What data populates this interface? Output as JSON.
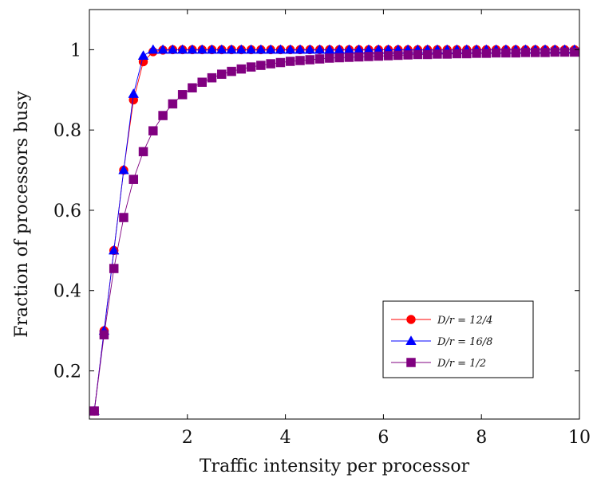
{
  "chart_data": {
    "type": "line",
    "xlabel": "Traffic intensity per processor",
    "ylabel": "Fraction of processors busy",
    "xlim": [
      0,
      10
    ],
    "ylim": [
      0.08,
      1.1
    ],
    "x_ticks": [
      2,
      4,
      6,
      8,
      10
    ],
    "y_ticks": [
      0.2,
      0.4,
      0.6,
      0.8,
      1
    ],
    "x_tick_labels": [
      "2",
      "4",
      "6",
      "8",
      "10"
    ],
    "y_tick_labels": [
      "0.2",
      "0.4",
      "0.6",
      "0.8",
      "1"
    ],
    "grid": false,
    "legend_position": "bottom-right",
    "series": [
      {
        "name": "D/r = 12/4",
        "label_display": "D/r = 12/4",
        "color": "#ff0000",
        "marker": "circle",
        "x": [
          0.1,
          0.3,
          0.5,
          0.7,
          0.9,
          1.1,
          1.3,
          1.5,
          1.7,
          1.9,
          2.1,
          2.3,
          2.5,
          2.7,
          2.9,
          3.1,
          3.3,
          3.5,
          3.7,
          3.9,
          4.1,
          4.3,
          4.5,
          4.7,
          4.9,
          5.1,
          5.3,
          5.5,
          5.7,
          5.9,
          6.1,
          6.3,
          6.5,
          6.7,
          6.9,
          7.1,
          7.3,
          7.5,
          7.7,
          7.9,
          8.1,
          8.3,
          8.5,
          8.7,
          8.9,
          9.1,
          9.3,
          9.5,
          9.7,
          9.9
        ],
        "y": [
          0.1,
          0.3,
          0.5,
          0.7,
          0.875,
          0.97,
          0.995,
          0.999,
          1,
          1,
          1,
          1,
          1,
          1,
          1,
          1,
          1,
          1,
          1,
          1,
          1,
          1,
          1,
          1,
          1,
          1,
          1,
          1,
          1,
          1,
          1,
          1,
          1,
          1,
          1,
          1,
          1,
          1,
          1,
          1,
          1,
          1,
          1,
          1,
          1,
          1,
          1,
          1,
          1,
          1
        ]
      },
      {
        "name": "D/r = 16/8",
        "label_display": "D/r = 16/8",
        "color": "#0000ff",
        "marker": "triangle",
        "x": [
          0.1,
          0.3,
          0.5,
          0.7,
          0.9,
          1.1,
          1.3,
          1.5,
          1.7,
          1.9,
          2.1,
          2.3,
          2.5,
          2.7,
          2.9,
          3.1,
          3.3,
          3.5,
          3.7,
          3.9,
          4.1,
          4.3,
          4.5,
          4.7,
          4.9,
          5.1,
          5.3,
          5.5,
          5.7,
          5.9,
          6.1,
          6.3,
          6.5,
          6.7,
          6.9,
          7.1,
          7.3,
          7.5,
          7.7,
          7.9,
          8.1,
          8.3,
          8.5,
          8.7,
          8.9,
          9.1,
          9.3,
          9.5,
          9.7,
          9.9
        ],
        "y": [
          0.1,
          0.3,
          0.5,
          0.7,
          0.89,
          0.985,
          1,
          1,
          1,
          1,
          1,
          1,
          1,
          1,
          1,
          1,
          1,
          1,
          1,
          1,
          1,
          1,
          1,
          1,
          1,
          1,
          1,
          1,
          1,
          1,
          1,
          1,
          1,
          1,
          1,
          1,
          1,
          1,
          1,
          1,
          1,
          1,
          1,
          1,
          1,
          1,
          1,
          1,
          1,
          1
        ]
      },
      {
        "name": "D/r = 1/2",
        "label_display": "D/r = 1/2",
        "color": "#800080",
        "marker": "square",
        "x": [
          0.1,
          0.3,
          0.5,
          0.7,
          0.9,
          1.1,
          1.3,
          1.5,
          1.7,
          1.9,
          2.1,
          2.3,
          2.5,
          2.7,
          2.9,
          3.1,
          3.3,
          3.5,
          3.7,
          3.9,
          4.1,
          4.3,
          4.5,
          4.7,
          4.9,
          5.1,
          5.3,
          5.5,
          5.7,
          5.9,
          6.1,
          6.3,
          6.5,
          6.7,
          6.9,
          7.1,
          7.3,
          7.5,
          7.7,
          7.9,
          8.1,
          8.3,
          8.5,
          8.7,
          8.9,
          9.1,
          9.3,
          9.5,
          9.7,
          9.9
        ],
        "y": [
          0.1,
          0.29,
          0.455,
          0.582,
          0.677,
          0.746,
          0.798,
          0.836,
          0.865,
          0.888,
          0.905,
          0.919,
          0.93,
          0.939,
          0.946,
          0.952,
          0.957,
          0.961,
          0.965,
          0.968,
          0.971,
          0.973,
          0.975,
          0.977,
          0.979,
          0.98,
          0.981,
          0.982,
          0.983,
          0.984,
          0.985,
          0.986,
          0.987,
          0.988,
          0.988,
          0.989,
          0.989,
          0.99,
          0.99,
          0.991,
          0.991,
          0.992,
          0.992,
          0.992,
          0.993,
          0.993,
          0.993,
          0.994,
          0.994,
          0.994
        ]
      }
    ]
  }
}
